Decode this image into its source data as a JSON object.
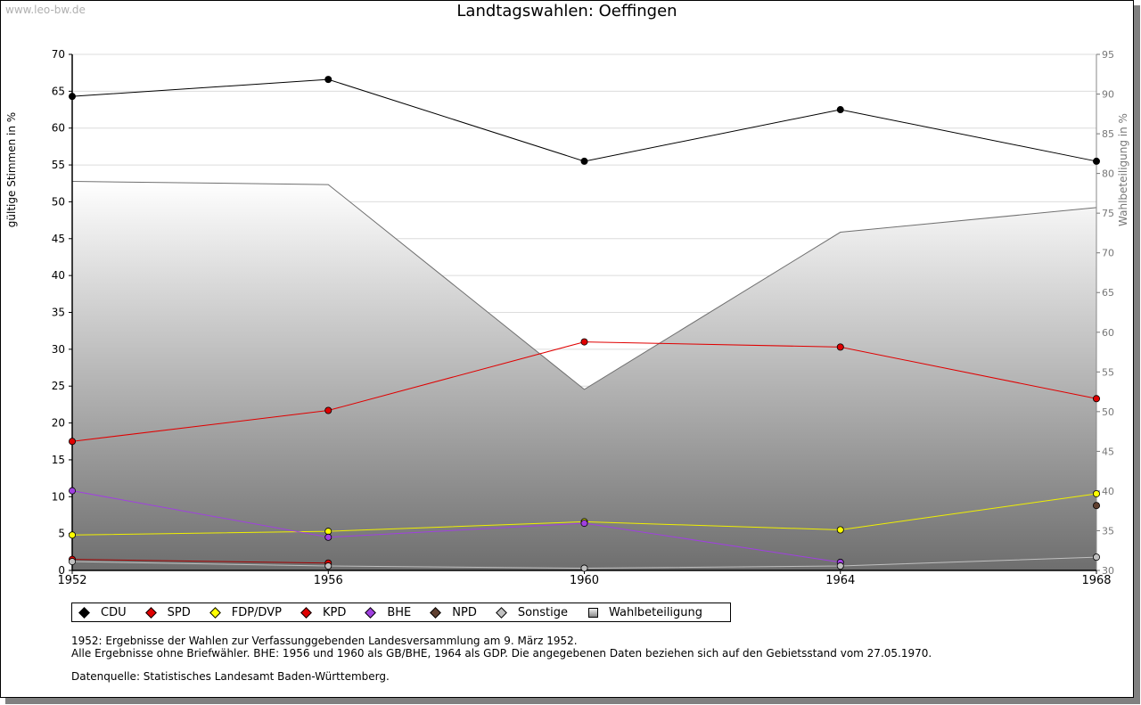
{
  "watermark": "www.leo-bw.de",
  "chart_data": {
    "type": "line",
    "title": "Landtagswahlen: Oeffingen",
    "ylabel": "gültige Stimmen in %",
    "ylabel_right": "Wahlbeteiligung in %",
    "ylim": [
      0,
      70
    ],
    "ylim_right": [
      30,
      95
    ],
    "yticks": [
      0,
      5,
      10,
      15,
      20,
      25,
      30,
      35,
      40,
      45,
      50,
      55,
      60,
      65,
      70
    ],
    "yticks_right": [
      30,
      35,
      40,
      45,
      50,
      55,
      60,
      65,
      70,
      75,
      80,
      85,
      90,
      95
    ],
    "x": [
      1952,
      1956,
      1960,
      1964,
      1968
    ],
    "grid": true,
    "series": [
      {
        "name": "CDU",
        "color": "#000000",
        "marker": "#000000",
        "values": [
          64.3,
          66.6,
          55.5,
          62.5,
          55.5
        ]
      },
      {
        "name": "SPD",
        "color": "#e00000",
        "marker": "#e00000",
        "values": [
          17.5,
          21.7,
          31.0,
          30.3,
          23.3
        ]
      },
      {
        "name": "FDP/DVP",
        "color": "#f0f000",
        "marker": "#ffff00",
        "values": [
          4.8,
          5.3,
          6.6,
          5.5,
          10.4
        ]
      },
      {
        "name": "KPD",
        "color": "#a00000",
        "marker": "#e00000",
        "values": [
          1.5,
          1.0,
          null,
          null,
          null
        ]
      },
      {
        "name": "BHE",
        "color": "#a040e0",
        "marker": "#a040e0",
        "values": [
          10.8,
          4.5,
          6.4,
          1.1,
          null
        ]
      },
      {
        "name": "NPD",
        "color": "#503020",
        "marker": "#604030",
        "values": [
          null,
          null,
          null,
          null,
          8.8
        ]
      },
      {
        "name": "Sonstige",
        "color": "#c0c0c0",
        "marker": "#c0c0c0",
        "values": [
          1.2,
          0.6,
          0.3,
          0.6,
          1.8
        ]
      }
    ],
    "turnout": {
      "name": "Wahlbeteiligung",
      "values": [
        79.0,
        78.6,
        52.8,
        72.6,
        75.7
      ]
    }
  },
  "legend": [
    "CDU",
    "SPD",
    "FDP/DVP",
    "KPD",
    "BHE",
    "NPD",
    "Sonstige",
    "Wahlbeteiligung"
  ],
  "notes": {
    "line1": "1952: Ergebnisse der Wahlen zur Verfassunggebenden Landesversammlung am 9. März 1952.",
    "line2": "Alle Ergebnisse ohne Briefwähler. BHE: 1956 und 1960 als GB/BHE, 1964 als GDP. Die angegebenen Daten beziehen sich auf den Gebietsstand vom 27.05.1970.",
    "source": "Datenquelle: Statistisches Landesamt Baden-Württemberg."
  }
}
